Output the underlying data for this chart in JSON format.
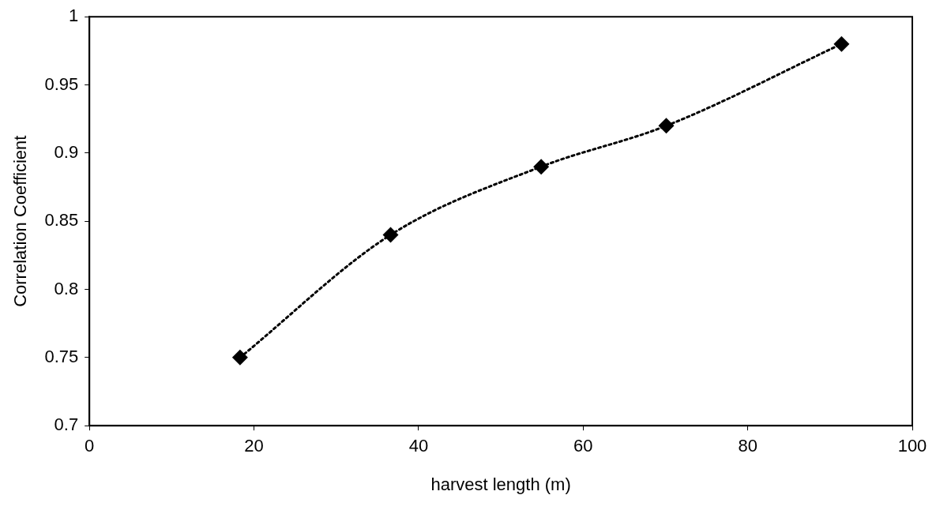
{
  "chart_data": {
    "type": "line",
    "xlabel": "harvest length (m)",
    "ylabel": "Correlation Coefficient",
    "x": [
      18.3,
      36.6,
      54.9,
      70.1,
      91.4
    ],
    "series": [
      {
        "color": "#000000",
        "values": [
          0.75,
          0.84,
          0.89,
          0.92,
          0.98
        ]
      }
    ],
    "xlim": [
      0,
      100
    ],
    "xticks": [
      0,
      20,
      40,
      60,
      80,
      100
    ],
    "ylim": [
      0.7,
      1
    ],
    "yticks": [
      0.7,
      0.75,
      0.8,
      0.85,
      0.9,
      0.95,
      1
    ],
    "grid": false,
    "legend": false,
    "marker": "diamond",
    "line_style": "dotted"
  }
}
